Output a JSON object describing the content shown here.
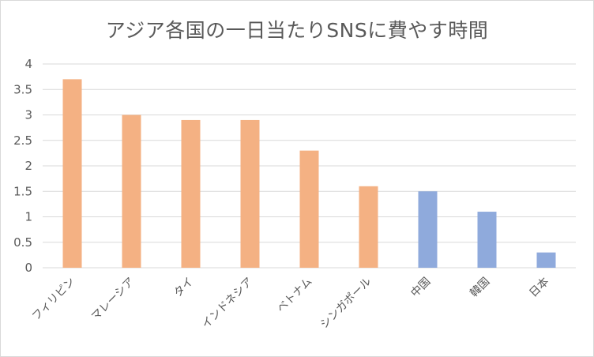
{
  "chart_data": {
    "type": "bar",
    "title": "アジア各国の一日当たりSNSに費やす時間",
    "categories": [
      "フィリピン",
      "マレーシア",
      "タイ",
      "インドネシア",
      "ベトナム",
      "シンガポール",
      "中国",
      "韓国",
      "日本"
    ],
    "values": [
      3.7,
      3.0,
      2.9,
      2.9,
      2.3,
      1.6,
      1.5,
      1.1,
      0.3
    ],
    "bar_colors": [
      "#f4b183",
      "#f4b183",
      "#f4b183",
      "#f4b183",
      "#f4b183",
      "#f4b183",
      "#8faadc",
      "#8faadc",
      "#8faadc"
    ],
    "yticks": [
      "0",
      "0.5",
      "1",
      "1.5",
      "2",
      "2.5",
      "3",
      "3.5",
      "4"
    ],
    "ylim": [
      0,
      4
    ],
    "grid": true,
    "legend": "none"
  }
}
